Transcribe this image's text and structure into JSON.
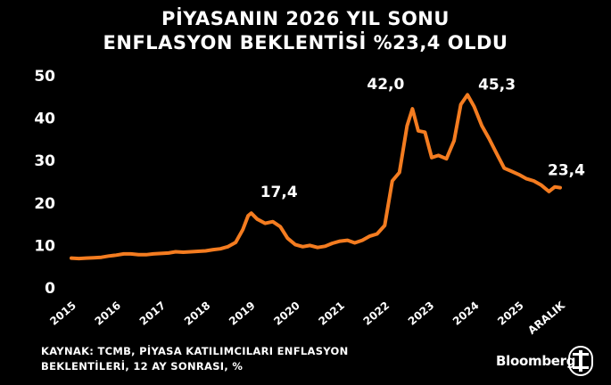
{
  "title_line1": "PİYASANIN 2026 YIL SONU",
  "title_line2": "ENFLASYON BEKLENTİSİ %23,4 OLDU",
  "source_line1": "KAYNAK: TCMB, PİYASA KATILIMCILARI ENFLASYON",
  "source_line2": "BEKLENTİLERİ, 12 AY SONRASI, %",
  "brand": "Bloomberg",
  "chart_data": {
    "type": "line",
    "title": "PİYASANIN 2026 YIL SONU ENFLASYON BEKLENTİSİ %23,4 OLDU",
    "ylim": [
      0,
      50
    ],
    "xlim": [
      2015.0,
      2026.0
    ],
    "yticks": [
      0,
      10,
      20,
      30,
      40,
      50
    ],
    "xtick_labels": [
      "2015",
      "2016",
      "2017",
      "2018",
      "2019",
      "2020",
      "2021",
      "2022",
      "2023",
      "2024",
      "2025",
      "ARALIK"
    ],
    "xtick_positions": [
      2015,
      2016,
      2017,
      2018,
      2019,
      2020,
      2021,
      2022,
      2023,
      2024,
      2025,
      2025.92
    ],
    "grid": false,
    "line_color": "#f47c20",
    "series": [
      {
        "values": [
          [
            2015.0,
            6.8
          ],
          [
            2015.17,
            6.7
          ],
          [
            2015.33,
            6.8
          ],
          [
            2015.5,
            6.9
          ],
          [
            2015.67,
            7.0
          ],
          [
            2015.83,
            7.3
          ],
          [
            2016.0,
            7.5
          ],
          [
            2016.17,
            7.8
          ],
          [
            2016.33,
            7.8
          ],
          [
            2016.5,
            7.6
          ],
          [
            2016.67,
            7.6
          ],
          [
            2016.83,
            7.8
          ],
          [
            2017.0,
            7.9
          ],
          [
            2017.17,
            8.0
          ],
          [
            2017.33,
            8.3
          ],
          [
            2017.5,
            8.2
          ],
          [
            2017.67,
            8.3
          ],
          [
            2017.83,
            8.4
          ],
          [
            2018.0,
            8.5
          ],
          [
            2018.17,
            8.8
          ],
          [
            2018.33,
            9.0
          ],
          [
            2018.5,
            9.5
          ],
          [
            2018.67,
            10.5
          ],
          [
            2018.83,
            13.5
          ],
          [
            2018.95,
            16.8
          ],
          [
            2019.02,
            17.4
          ],
          [
            2019.15,
            16.0
          ],
          [
            2019.33,
            15.0
          ],
          [
            2019.5,
            15.4
          ],
          [
            2019.67,
            14.2
          ],
          [
            2019.83,
            11.5
          ],
          [
            2020.0,
            10.0
          ],
          [
            2020.17,
            9.5
          ],
          [
            2020.33,
            9.8
          ],
          [
            2020.5,
            9.3
          ],
          [
            2020.67,
            9.6
          ],
          [
            2020.83,
            10.3
          ],
          [
            2021.0,
            10.8
          ],
          [
            2021.17,
            11.0
          ],
          [
            2021.33,
            10.4
          ],
          [
            2021.5,
            11.0
          ],
          [
            2021.67,
            12.0
          ],
          [
            2021.83,
            12.5
          ],
          [
            2022.0,
            14.5
          ],
          [
            2022.17,
            25.0
          ],
          [
            2022.33,
            27.0
          ],
          [
            2022.5,
            38.0
          ],
          [
            2022.62,
            42.0
          ],
          [
            2022.75,
            36.8
          ],
          [
            2022.9,
            36.5
          ],
          [
            2023.05,
            30.5
          ],
          [
            2023.2,
            31.0
          ],
          [
            2023.38,
            30.2
          ],
          [
            2023.55,
            34.5
          ],
          [
            2023.7,
            43.0
          ],
          [
            2023.85,
            45.3
          ],
          [
            2024.0,
            42.5
          ],
          [
            2024.17,
            38.0
          ],
          [
            2024.33,
            35.0
          ],
          [
            2024.5,
            31.5
          ],
          [
            2024.67,
            28.0
          ],
          [
            2024.83,
            27.3
          ],
          [
            2025.0,
            26.5
          ],
          [
            2025.17,
            25.5
          ],
          [
            2025.33,
            25.0
          ],
          [
            2025.5,
            24.0
          ],
          [
            2025.67,
            22.5
          ],
          [
            2025.8,
            23.6
          ],
          [
            2025.92,
            23.4
          ]
        ]
      }
    ],
    "annotations": [
      {
        "label": "17,4",
        "x": 2019.02,
        "y": 17.4
      },
      {
        "label": "42,0",
        "x": 2022.62,
        "y": 42.0
      },
      {
        "label": "45,3",
        "x": 2023.85,
        "y": 45.3
      },
      {
        "label": "23,4",
        "x": 2025.92,
        "y": 23.4
      }
    ]
  }
}
